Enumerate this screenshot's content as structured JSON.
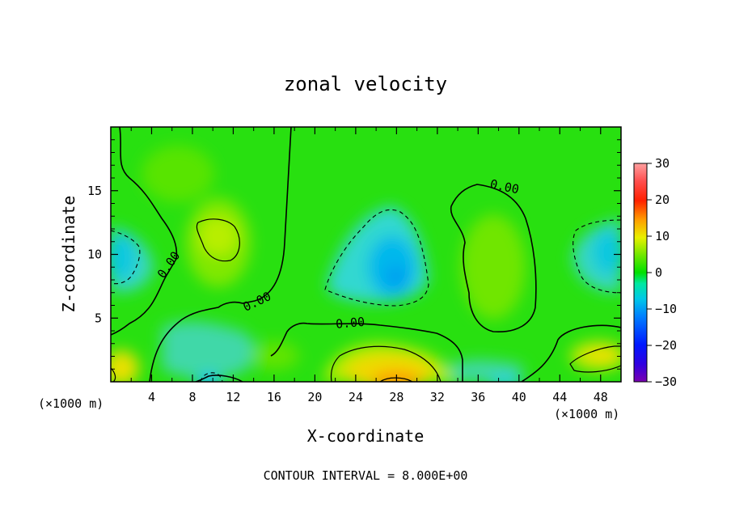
{
  "chart_data": {
    "type": "heatmap",
    "title": "zonal velocity",
    "xlabel": "X-coordinate",
    "ylabel": "Z-coordinate",
    "x_unit": "(×1000 m)",
    "z_unit": "(×1000 m)",
    "footer": "CONTOUR INTERVAL = 8.000E+00",
    "xlim": [
      0,
      50
    ],
    "ylim": [
      0,
      20
    ],
    "x_ticks": [
      4,
      8,
      12,
      16,
      20,
      24,
      28,
      32,
      36,
      40,
      44,
      48
    ],
    "y_ticks": [
      5,
      10,
      15
    ],
    "colorbar": {
      "range": [
        -30,
        30
      ],
      "ticks": [
        30,
        20,
        10,
        0,
        -10,
        -20,
        -30
      ],
      "tick_labels": [
        "30",
        "20",
        "10",
        "0",
        "−10",
        "−20",
        "−30"
      ]
    },
    "contour_labels": [
      {
        "text": "0.00",
        "x": 6,
        "z": 9
      },
      {
        "text": "0.00",
        "x": 14.5,
        "z": 6
      },
      {
        "text": "0.00",
        "x": 23.5,
        "z": 4.3
      },
      {
        "text": "0.00",
        "x": 38.5,
        "z": 15
      }
    ],
    "features": [
      {
        "kind": "max",
        "approx_value": 12,
        "x": 11,
        "z": 11
      },
      {
        "kind": "min",
        "approx_value": -8,
        "x": 27,
        "z": 8.5
      },
      {
        "kind": "min",
        "approx_value": -6,
        "x": 1,
        "z": 10
      },
      {
        "kind": "min",
        "approx_value": -6,
        "x": 47,
        "z": 10.5
      },
      {
        "kind": "max",
        "approx_value": 12,
        "x": 28,
        "z": 0.5
      },
      {
        "kind": "max",
        "approx_value": 10,
        "x": 1,
        "z": 1.5
      },
      {
        "kind": "max",
        "approx_value": 8,
        "x": 48,
        "z": 2
      },
      {
        "kind": "max",
        "approx_value": 6,
        "x": 38,
        "z": 9
      }
    ],
    "colors": {
      "neg30": "#7a00b0",
      "neg20": "#0018ff",
      "neg10": "#00c8e8",
      "zero": "#00e000",
      "pos10": "#e8f000",
      "pos20": "#ff2000",
      "pos30": "#ffa0a0"
    }
  }
}
